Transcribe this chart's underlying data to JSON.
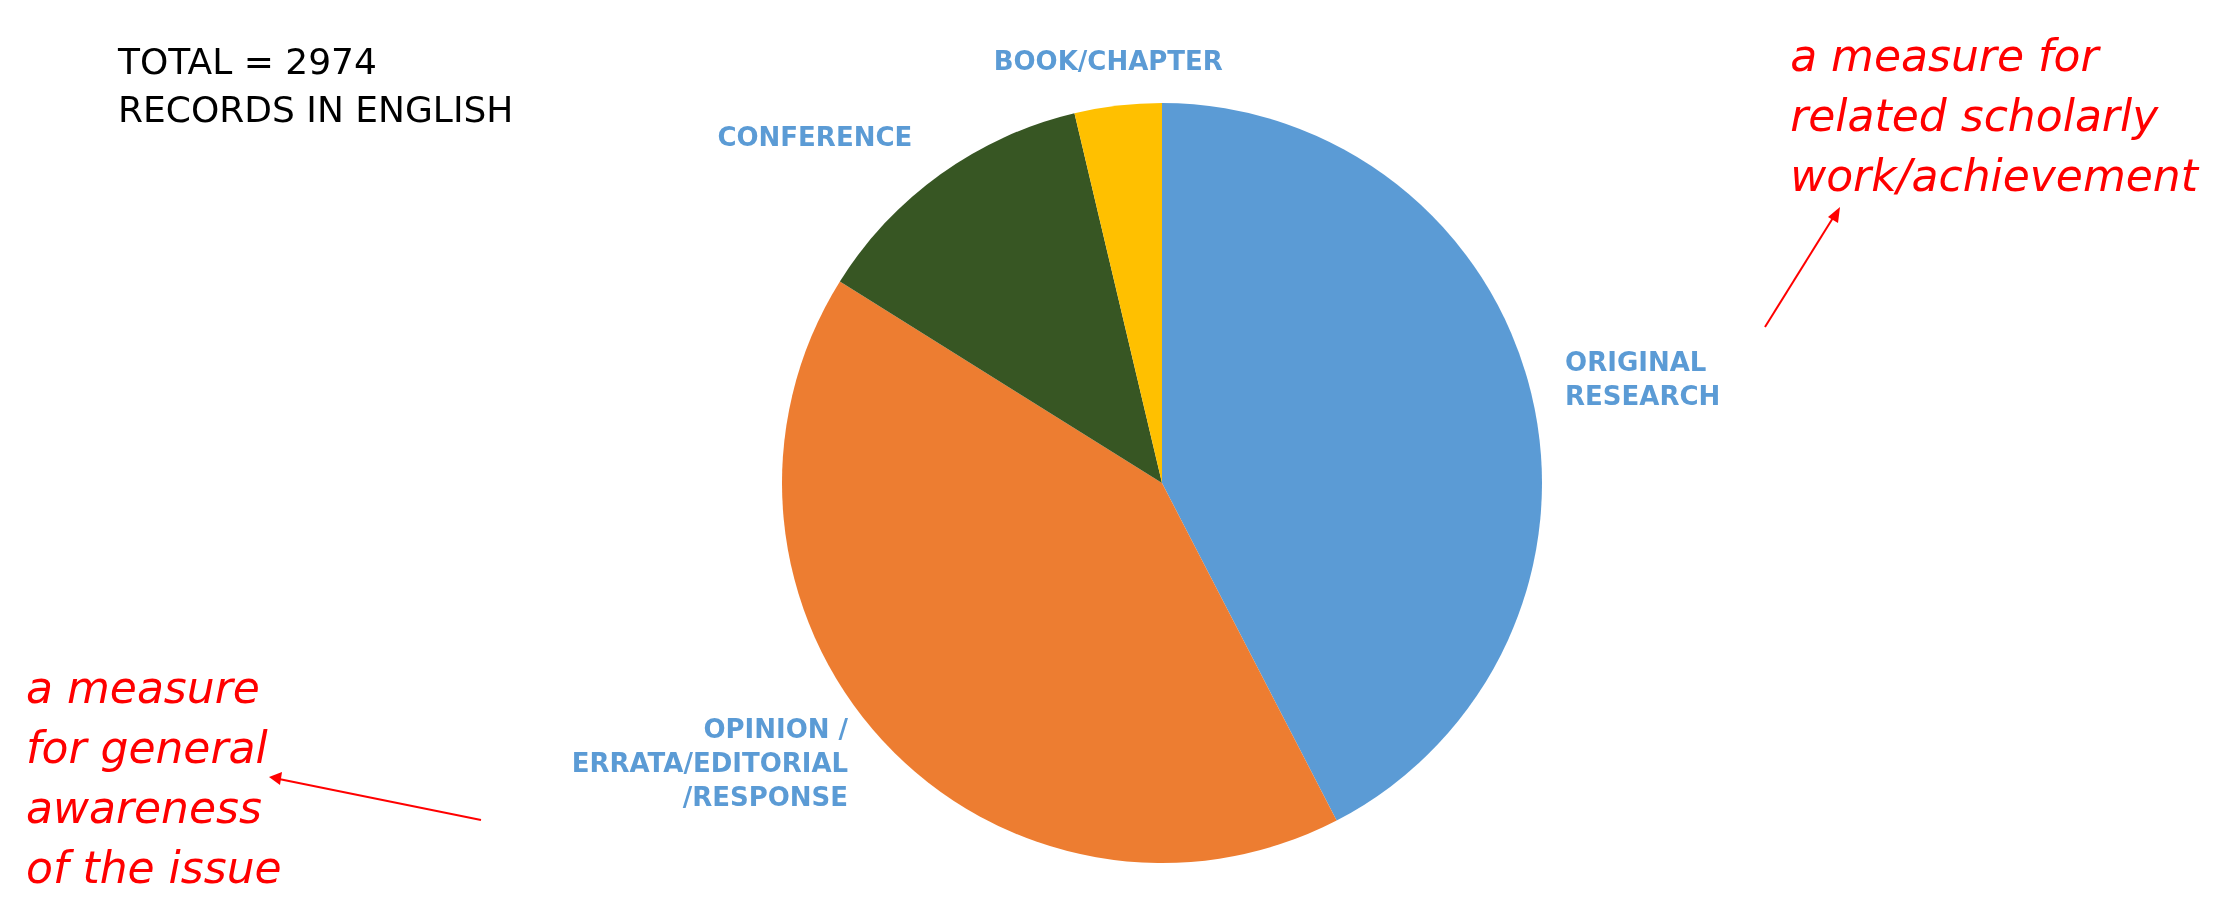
{
  "chart_data": {
    "type": "pie",
    "categories": [
      "ORIGINAL RESEARCH",
      "OPINION / ERRATA/EDITORIAL/RESPONSE",
      "CONFERENCE",
      "BOOK/CHAPTER"
    ],
    "values": [
      42.4,
      41.5,
      12.4,
      3.7
    ],
    "colors": [
      "#5b9bd5",
      "#ed7d31",
      "#375623",
      "#ffc000"
    ],
    "annotations": [
      "TOTAL = 2974\nRECORDS IN ENGLISH",
      "a measure for\nrelated scholarly\nwork/achievement",
      "a measure\nfor general\nawareness\nof the issue"
    ]
  }
}
